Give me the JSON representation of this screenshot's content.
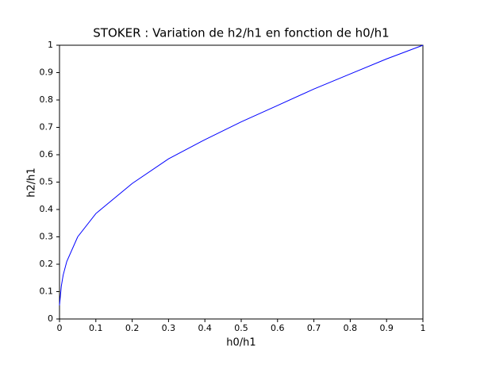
{
  "chart_data": {
    "type": "line",
    "title": "STOKER : Variation de h2/h1 en fonction de h0/h1",
    "x_label": "h0/h1",
    "y_label": "h2/h1",
    "x": [
      0,
      0.005,
      0.01,
      0.02,
      0.05,
      0.1,
      0.2,
      0.3,
      0.4,
      0.5,
      0.6,
      0.7,
      0.8,
      0.9,
      1
    ],
    "series": [
      {
        "name": "h2/h1",
        "color": "#0000ff",
        "values": [
          0.05,
          0.12,
          0.16,
          0.21,
          0.3,
          0.385,
          0.495,
          0.585,
          0.655,
          0.72,
          0.78,
          0.84,
          0.895,
          0.95,
          1
        ]
      }
    ],
    "xlim": [
      0,
      1
    ],
    "ylim": [
      0,
      1
    ],
    "xticks": [
      0,
      0.1,
      0.2,
      0.3,
      0.4,
      0.5,
      0.6,
      0.7,
      0.8,
      0.9,
      1
    ],
    "yticks": [
      0,
      0.1,
      0.2,
      0.3,
      0.4,
      0.5,
      0.6,
      0.7,
      0.8,
      0.9,
      1
    ],
    "grid": false
  }
}
